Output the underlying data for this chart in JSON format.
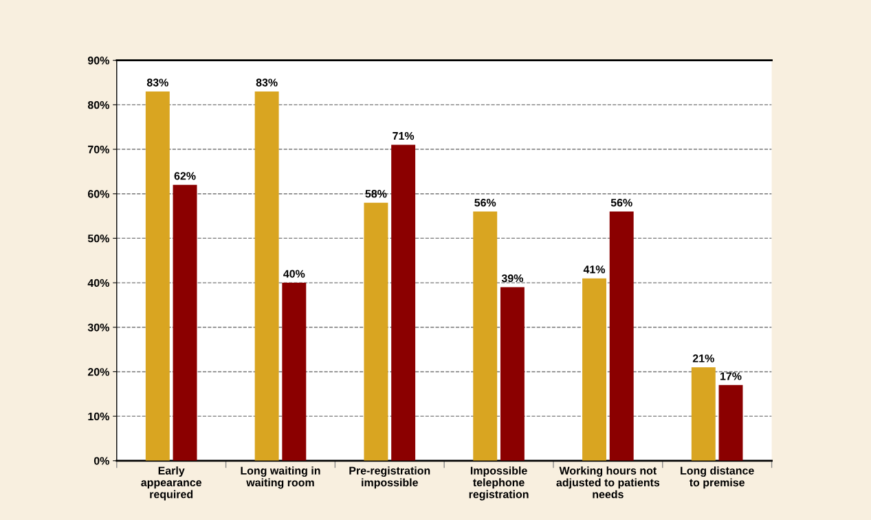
{
  "chart_data": {
    "type": "bar",
    "categories": [
      "Early\nappearance\nrequired",
      "Long waiting in\nwaiting room",
      "Pre-registration\nimpossible",
      "Impossible\ntelephone\nregistration",
      "Working hours not\nadjusted to patients\nneeds",
      "Long distance\nto premise"
    ],
    "series": [
      {
        "color": "#d9a521",
        "values": [
          83,
          83,
          58,
          56,
          41,
          21
        ],
        "value_labels": [
          "83%",
          "83%",
          "58%",
          "56%",
          "41%",
          "21%"
        ]
      },
      {
        "color": "#8b0000",
        "values": [
          62,
          40,
          71,
          39,
          56,
          17
        ],
        "value_labels": [
          "62%",
          "40%",
          "71%",
          "39%",
          "56%",
          "17%"
        ]
      }
    ],
    "ylim": [
      0,
      90
    ],
    "yticks": [
      {
        "value": 0,
        "label": "0%"
      },
      {
        "value": 10,
        "label": "10%"
      },
      {
        "value": 20,
        "label": "20%"
      },
      {
        "value": 30,
        "label": "30%"
      },
      {
        "value": 40,
        "label": "40%"
      },
      {
        "value": 50,
        "label": "50%"
      },
      {
        "value": 60,
        "label": "60%"
      },
      {
        "value": 70,
        "label": "70%"
      },
      {
        "value": 80,
        "label": "80%"
      },
      {
        "value": 90,
        "label": "90%"
      }
    ],
    "grid": "y",
    "line_style": "dashed",
    "legend": false
  }
}
